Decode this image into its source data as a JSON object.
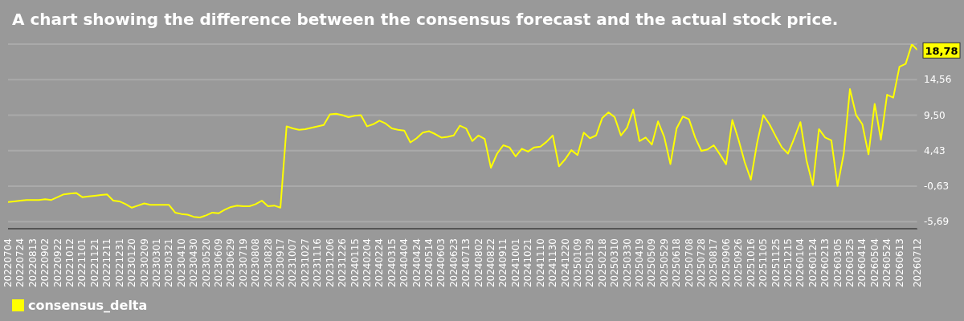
{
  "chart_data": {
    "type": "line",
    "title": "A chart showing the difference between the consensus forecast and the actual stock price.",
    "x": [
      "2022-07-04",
      "2022-07-14",
      "2022-07-24",
      "2022-08-03",
      "2022-08-13",
      "2022-08-23",
      "2022-09-02",
      "2022-09-12",
      "2022-09-22",
      "2022-10-02",
      "2022-10-12",
      "2022-10-22",
      "2022-11-01",
      "2022-11-11",
      "2022-11-21",
      "2022-12-01",
      "2022-12-11",
      "2022-12-21",
      "2022-12-31",
      "2023-01-10",
      "2023-01-20",
      "2023-01-30",
      "2023-02-09",
      "2023-02-19",
      "2023-03-01",
      "2023-03-11",
      "2023-03-21",
      "2023-03-31",
      "2023-04-10",
      "2023-04-20",
      "2023-04-30",
      "2023-05-10",
      "2023-05-20",
      "2023-05-30",
      "2023-06-09",
      "2023-06-19",
      "2023-06-29",
      "2023-07-09",
      "2023-07-19",
      "2023-07-29",
      "2023-08-08",
      "2023-08-18",
      "2023-08-28",
      "2023-09-07",
      "2023-09-17",
      "2023-09-27",
      "2023-10-07",
      "2023-10-17",
      "2023-10-27",
      "2023-11-06",
      "2023-11-16",
      "2023-11-26",
      "2023-12-06",
      "2023-12-16",
      "2023-12-26",
      "2024-01-05",
      "2024-01-15",
      "2024-01-25",
      "2024-02-04",
      "2024-02-14",
      "2024-02-24",
      "2024-03-05",
      "2024-03-15",
      "2024-03-25",
      "2024-04-04",
      "2024-04-14",
      "2024-04-24",
      "2024-05-04",
      "2024-05-14",
      "2024-05-24",
      "2024-06-03",
      "2024-06-13",
      "2024-06-23",
      "2024-07-03",
      "2024-07-13",
      "2024-07-23",
      "2024-08-02",
      "2024-08-12",
      "2024-08-22",
      "2024-09-01",
      "2024-09-11",
      "2024-09-21",
      "2024-10-01",
      "2024-10-11",
      "2024-10-21",
      "2024-10-31",
      "2024-11-10",
      "2024-11-20",
      "2024-11-30",
      "2024-12-10",
      "2024-12-20",
      "2024-12-30",
      "2025-01-09",
      "2025-01-19",
      "2025-01-29",
      "2025-02-08",
      "2025-02-18",
      "2025-02-28",
      "2025-03-10",
      "2025-03-20",
      "2025-03-30",
      "2025-04-09",
      "2025-04-19",
      "2025-04-29",
      "2025-05-09",
      "2025-05-19",
      "2025-05-29",
      "2025-06-08",
      "2025-06-18",
      "2025-06-28",
      "2025-07-08",
      "2025-07-18",
      "2025-07-28",
      "2025-08-07",
      "2025-08-17",
      "2025-08-27",
      "2025-09-06",
      "2025-09-16",
      "2025-09-26",
      "2025-10-06",
      "2025-10-16",
      "2025-10-26",
      "2025-11-05",
      "2025-11-15",
      "2025-11-25",
      "2025-12-05",
      "2025-12-15",
      "2025-12-25",
      "2026-01-04",
      "2026-01-14",
      "2026-01-24",
      "2026-02-03",
      "2026-02-13",
      "2026-02-23",
      "2026-03-05",
      "2026-03-15",
      "2026-03-25",
      "2026-04-04",
      "2026-04-14",
      "2026-04-24",
      "2026-05-04",
      "2026-05-14",
      "2026-05-24",
      "2026-06-03",
      "2026-06-13",
      "2026-06-23",
      "2026-07-03",
      "2026-07-12"
    ],
    "series": [
      {
        "name": "consensus_delta",
        "color": "#ffff00",
        "values": [
          -2.9,
          -2.8,
          -2.7,
          -2.6,
          -2.6,
          -2.6,
          -2.5,
          -2.6,
          -2.2,
          -1.8,
          -1.7,
          -1.6,
          -2.2,
          -2.1,
          -2.0,
          -1.9,
          -1.8,
          -2.7,
          -2.8,
          -3.2,
          -3.7,
          -3.4,
          -3.1,
          -3.3,
          -3.3,
          -3.3,
          -3.3,
          -4.4,
          -4.6,
          -4.7,
          -5.0,
          -5.1,
          -4.8,
          -4.4,
          -4.5,
          -4.0,
          -3.6,
          -3.4,
          -3.5,
          -3.5,
          -3.2,
          -2.7,
          -3.5,
          -3.4,
          -3.7,
          7.9,
          7.6,
          7.4,
          7.5,
          7.7,
          7.9,
          8.1,
          9.6,
          9.7,
          9.5,
          9.2,
          9.4,
          9.5,
          7.9,
          8.2,
          8.7,
          8.3,
          7.6,
          7.4,
          7.3,
          5.6,
          6.2,
          7.0,
          7.2,
          6.8,
          6.3,
          6.4,
          6.6,
          8.0,
          7.6,
          5.8,
          6.6,
          6.1,
          2.0,
          4.0,
          5.2,
          4.9,
          3.6,
          4.7,
          4.3,
          4.9,
          5.0,
          5.7,
          6.6,
          2.2,
          3.2,
          4.5,
          3.8,
          7.0,
          6.2,
          6.6,
          9.1,
          9.9,
          9.2,
          6.6,
          7.7,
          10.3,
          5.8,
          6.3,
          5.3,
          8.6,
          6.4,
          2.5,
          7.6,
          9.3,
          8.9,
          6.3,
          4.4,
          4.6,
          5.2,
          3.9,
          2.5,
          8.8,
          6.0,
          2.8,
          0.3,
          5.5,
          9.5,
          8.2,
          6.5,
          4.9,
          4.0,
          6.2,
          8.5,
          3.0,
          -0.5,
          7.5,
          6.3,
          5.9,
          -0.6,
          4.0,
          13.2,
          9.5,
          8.2,
          3.9,
          11.1,
          6.0,
          12.4,
          12.0,
          16.4,
          16.8,
          19.6,
          18.78
        ]
      }
    ],
    "xlim": [
      "2022-07-04",
      "2026-07-12"
    ],
    "xticks": [
      {
        "value": "2022-07-04",
        "label": "20220704"
      },
      {
        "value": "2022-07-24",
        "label": "20220724"
      },
      {
        "value": "2022-08-13",
        "label": "20220813"
      },
      {
        "value": "2022-09-02",
        "label": "20220902"
      },
      {
        "value": "2022-09-22",
        "label": "20220922"
      },
      {
        "value": "2022-10-12",
        "label": "20221012"
      },
      {
        "value": "2022-11-01",
        "label": "20221101"
      },
      {
        "value": "2022-11-21",
        "label": "20221121"
      },
      {
        "value": "2022-12-11",
        "label": "20221211"
      },
      {
        "value": "2022-12-31",
        "label": "20221231"
      },
      {
        "value": "2023-01-20",
        "label": "20230120"
      },
      {
        "value": "2023-02-09",
        "label": "20230209"
      },
      {
        "value": "2023-03-01",
        "label": "20230301"
      },
      {
        "value": "2023-03-21",
        "label": "20230321"
      },
      {
        "value": "2023-04-10",
        "label": "20230410"
      },
      {
        "value": "2023-04-30",
        "label": "20230430"
      },
      {
        "value": "2023-05-20",
        "label": "20230520"
      },
      {
        "value": "2023-06-09",
        "label": "20230609"
      },
      {
        "value": "2023-06-29",
        "label": "20230629"
      },
      {
        "value": "2023-07-19",
        "label": "20230719"
      },
      {
        "value": "2023-08-08",
        "label": "20230808"
      },
      {
        "value": "2023-08-28",
        "label": "20230828"
      },
      {
        "value": "2023-09-17",
        "label": "20230917"
      },
      {
        "value": "2023-10-07",
        "label": "20231007"
      },
      {
        "value": "2023-10-27",
        "label": "20231027"
      },
      {
        "value": "2023-11-16",
        "label": "20231116"
      },
      {
        "value": "2023-12-06",
        "label": "20231206"
      },
      {
        "value": "2023-12-26",
        "label": "20231226"
      },
      {
        "value": "2024-01-15",
        "label": "20240115"
      },
      {
        "value": "2024-02-04",
        "label": "20240204"
      },
      {
        "value": "2024-02-24",
        "label": "20240224"
      },
      {
        "value": "2024-03-15",
        "label": "20240315"
      },
      {
        "value": "2024-04-04",
        "label": "20240404"
      },
      {
        "value": "2024-04-24",
        "label": "20240424"
      },
      {
        "value": "2024-05-14",
        "label": "20240514"
      },
      {
        "value": "2024-06-03",
        "label": "20240603"
      },
      {
        "value": "2024-06-23",
        "label": "20240623"
      },
      {
        "value": "2024-07-13",
        "label": "20240713"
      },
      {
        "value": "2024-08-02",
        "label": "20240802"
      },
      {
        "value": "2024-08-22",
        "label": "20240822"
      },
      {
        "value": "2024-09-11",
        "label": "20240911"
      },
      {
        "value": "2024-10-01",
        "label": "20241001"
      },
      {
        "value": "2024-10-21",
        "label": "20241021"
      },
      {
        "value": "2024-11-10",
        "label": "20241110"
      },
      {
        "value": "2024-11-30",
        "label": "20241130"
      },
      {
        "value": "2024-12-20",
        "label": "20241220"
      },
      {
        "value": "2025-01-09",
        "label": "20250109"
      },
      {
        "value": "2025-01-29",
        "label": "20250129"
      },
      {
        "value": "2025-02-18",
        "label": "20250218"
      },
      {
        "value": "2025-03-10",
        "label": "20250310"
      },
      {
        "value": "2025-03-30",
        "label": "20250330"
      },
      {
        "value": "2025-04-19",
        "label": "20250419"
      },
      {
        "value": "2025-05-09",
        "label": "20250509"
      },
      {
        "value": "2025-05-29",
        "label": "20250529"
      },
      {
        "value": "2025-06-18",
        "label": "20250618"
      },
      {
        "value": "2025-07-08",
        "label": "20250708"
      },
      {
        "value": "2025-07-28",
        "label": "20250728"
      },
      {
        "value": "2025-08-17",
        "label": "20250817"
      },
      {
        "value": "2025-09-06",
        "label": "20250906"
      },
      {
        "value": "2025-09-26",
        "label": "20250926"
      },
      {
        "value": "2025-10-16",
        "label": "20251016"
      },
      {
        "value": "2025-11-05",
        "label": "20251105"
      },
      {
        "value": "2025-11-25",
        "label": "20251125"
      },
      {
        "value": "2025-12-15",
        "label": "20251215"
      },
      {
        "value": "2026-01-04",
        "label": "20260104"
      },
      {
        "value": "2026-01-24",
        "label": "20260124"
      },
      {
        "value": "2026-02-13",
        "label": "20260213"
      },
      {
        "value": "2026-03-05",
        "label": "20260305"
      },
      {
        "value": "2026-03-25",
        "label": "20260325"
      },
      {
        "value": "2026-04-14",
        "label": "20260414"
      },
      {
        "value": "2026-05-04",
        "label": "20260504"
      },
      {
        "value": "2026-05-24",
        "label": "20260524"
      },
      {
        "value": "2026-06-13",
        "label": "20260613"
      },
      {
        "value": "2026-07-12",
        "label": "20260712"
      }
    ],
    "ylim": [
      -6.7,
      19.62
    ],
    "yticks": [
      {
        "value": -5.69,
        "label": "-5,69"
      },
      {
        "value": -0.63,
        "label": "-0,63"
      },
      {
        "value": 4.43,
        "label": "4,43"
      },
      {
        "value": 9.5,
        "label": "9,50"
      },
      {
        "value": 14.56,
        "label": "14,56"
      },
      {
        "value": 19.62,
        "label": null
      }
    ],
    "annotations": [
      {
        "text": "18,78",
        "x": "2026-07-12",
        "y": 18.78
      }
    ],
    "grid": "y",
    "legend": "bottom left",
    "marker": "none",
    "line_style": "solid"
  }
}
